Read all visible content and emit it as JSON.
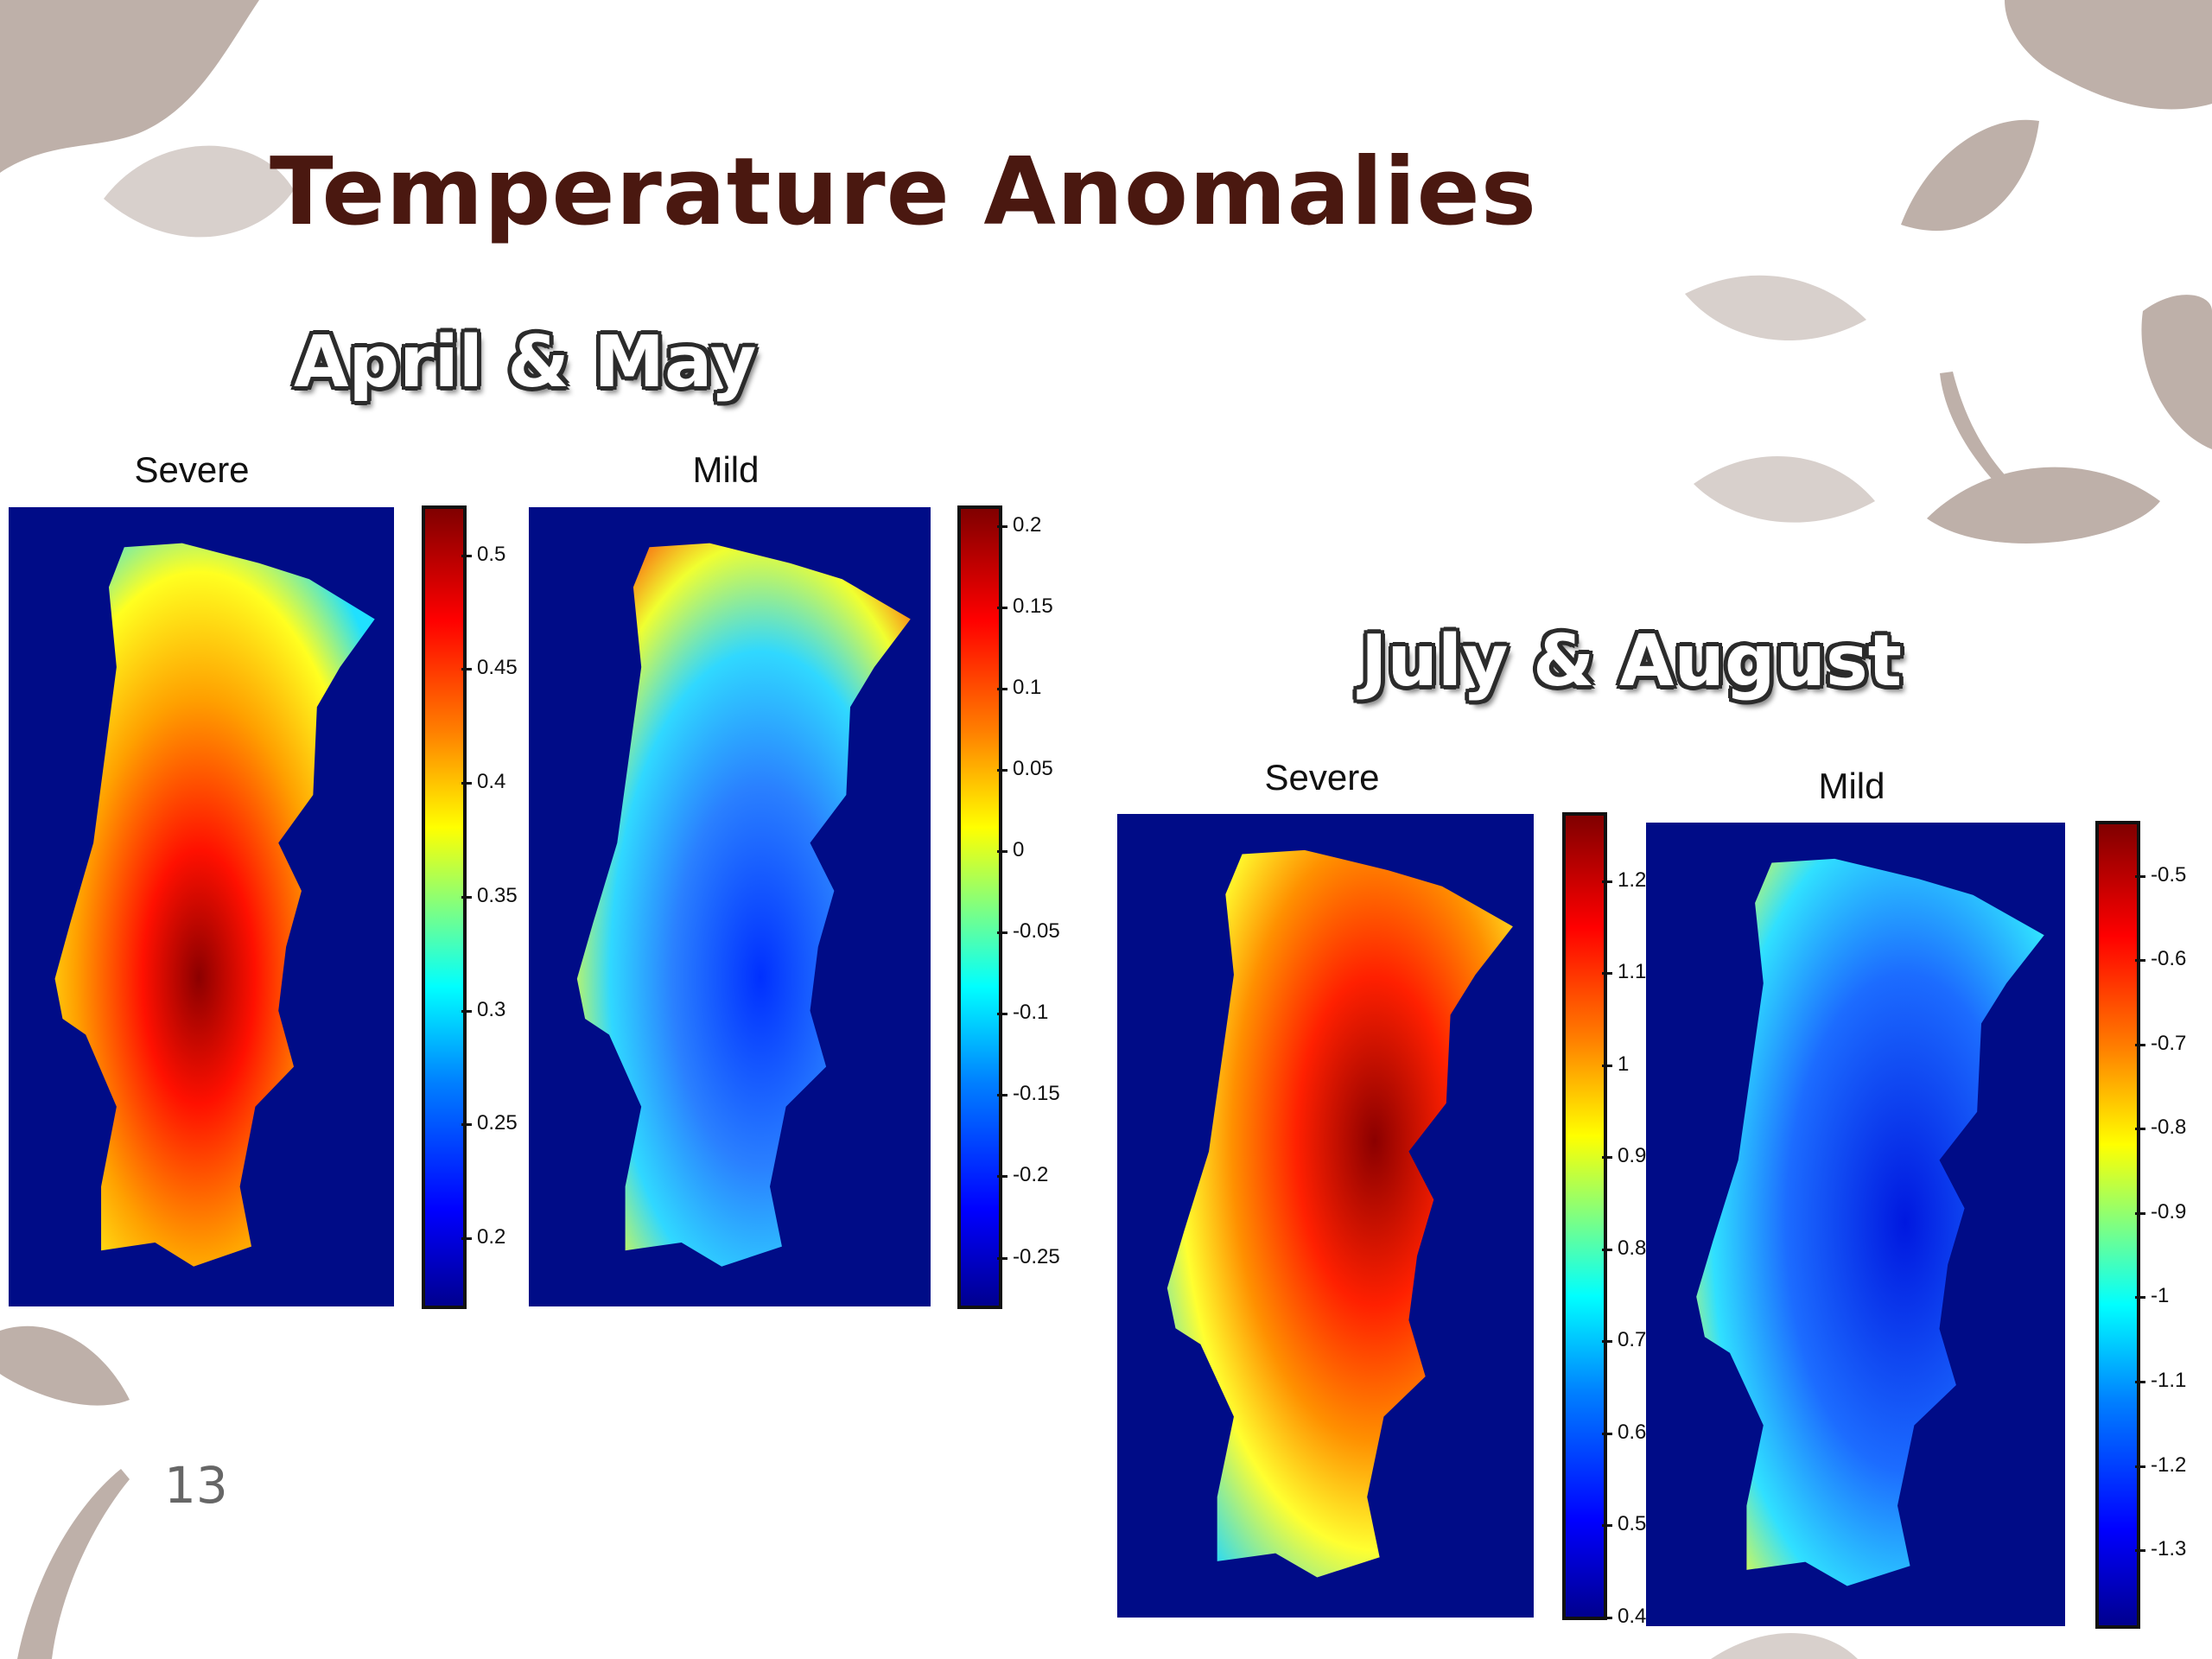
{
  "slide": {
    "title": "Temperature Anomalies",
    "page_number": "13"
  },
  "colors": {
    "title": "#4a1810",
    "map_background": "#000c87"
  },
  "groups": [
    {
      "id": "april_may",
      "title": "April & May",
      "panels": [
        {
          "id": "am_severe",
          "label": "Severe",
          "ticks": [
            "0.5",
            "0.45",
            "0.4",
            "0.35",
            "0.3",
            "0.25",
            "0.2"
          ],
          "scale_min": 0.17,
          "scale_max": 0.52,
          "colormap": "jet"
        },
        {
          "id": "am_mild",
          "label": "Mild",
          "ticks": [
            "0.2",
            "0.15",
            "0.1",
            "0.05",
            "0",
            "-0.05",
            "-0.1",
            "-0.15",
            "-0.2",
            "-0.25"
          ],
          "scale_min": -0.28,
          "scale_max": 0.21,
          "colormap": "jet"
        }
      ]
    },
    {
      "id": "july_august",
      "title": "July & August",
      "panels": [
        {
          "id": "ja_severe",
          "label": "Severe",
          "ticks": [
            "1.2",
            "1.1",
            "1",
            "0.9",
            "0.8",
            "0.7",
            "0.6",
            "0.5",
            "0.4"
          ],
          "scale_min": 0.4,
          "scale_max": 1.27,
          "colormap": "jet"
        },
        {
          "id": "ja_mild",
          "label": "Mild",
          "ticks": [
            "-0.5",
            "-0.6",
            "-0.7",
            "-0.8",
            "-0.9",
            "-1",
            "-1.1",
            "-1.2",
            "-1.3"
          ],
          "scale_min": -1.39,
          "scale_max": -0.44,
          "colormap": "jet"
        }
      ]
    }
  ]
}
